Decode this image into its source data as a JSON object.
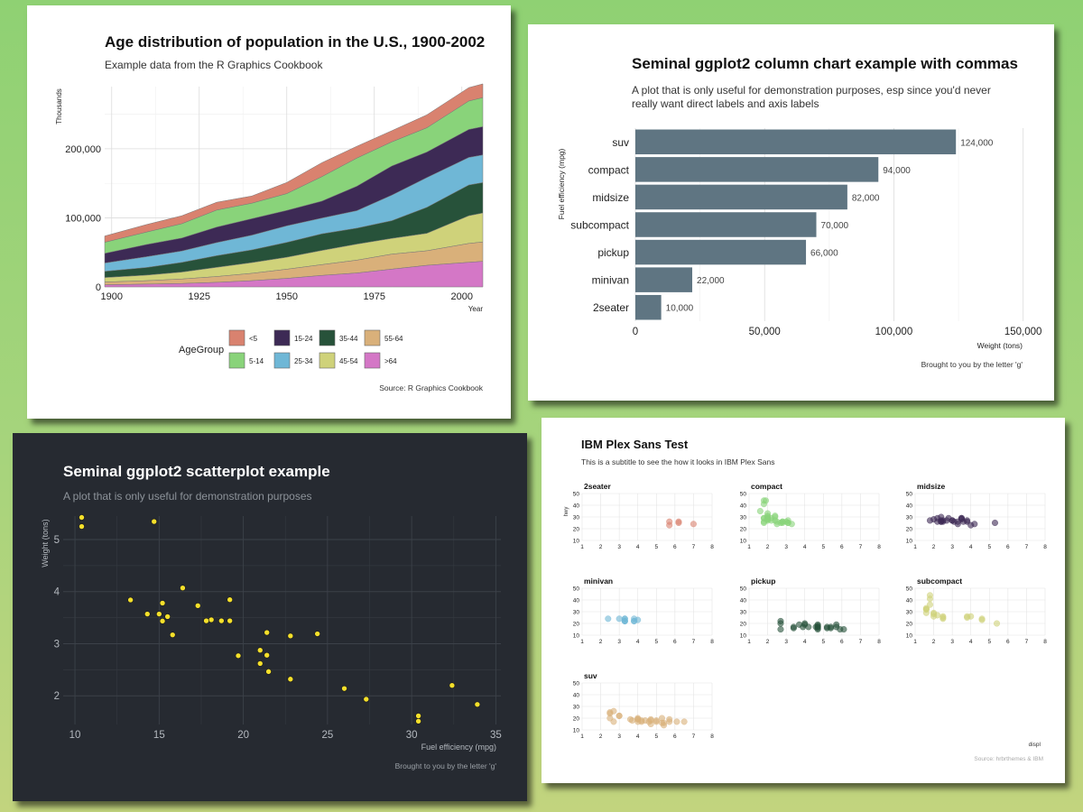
{
  "chart_data": [
    {
      "type": "area",
      "title": "Age distribution of population in the U.S., 1900-2002",
      "subtitle": "Example data from the R Graphics Cookbook",
      "xlabel": "Year",
      "ylabel": "Thousands",
      "caption": "Source: R Graphics Cookbook",
      "legend_title": "AgeGroup",
      "xlim": [
        1898,
        2006
      ],
      "ylim": [
        0,
        290000
      ],
      "x_ticks": [
        1900,
        1925,
        1950,
        1975,
        2000
      ],
      "y_ticks": [
        0,
        100000,
        200000
      ],
      "y_tick_labels": [
        "0",
        "100,000",
        "200,000"
      ],
      "x": [
        1898,
        1910,
        1920,
        1930,
        1940,
        1950,
        1960,
        1970,
        1980,
        1990,
        2002,
        2006
      ],
      "series": [
        {
          "name": "<5",
          "color": "#d9826f",
          "values": [
            9200,
            11000,
            11600,
            11400,
            10500,
            16200,
            20300,
            17200,
            16300,
            18800,
            19500,
            20000
          ]
        },
        {
          "name": "5-14",
          "color": "#89d37a",
          "values": [
            16000,
            18000,
            20700,
            24600,
            22400,
            24300,
            35400,
            40700,
            34900,
            35100,
            41200,
            42000
          ]
        },
        {
          "name": "15-24",
          "color": "#3d2a55",
          "values": [
            14000,
            17700,
            18800,
            22500,
            23900,
            22300,
            24500,
            35400,
            42200,
            37000,
            40500,
            41000
          ]
        },
        {
          "name": "25-34",
          "color": "#6fb7d6",
          "values": [
            12000,
            15600,
            16500,
            18900,
            21300,
            24000,
            22800,
            25300,
            37000,
            43100,
            39900,
            40000
          ]
        },
        {
          "name": "35-44",
          "color": "#27523a",
          "values": [
            9000,
            11100,
            14000,
            16900,
            18400,
            21500,
            24100,
            23100,
            25600,
            37600,
            44500,
            44000
          ]
        },
        {
          "name": "45-54",
          "color": "#cfd27a",
          "values": [
            6500,
            8000,
            10000,
            13300,
            15500,
            17300,
            20500,
            23200,
            22800,
            25200,
            40100,
            42000
          ]
        },
        {
          "name": "55-64",
          "color": "#d9b07a",
          "values": [
            4000,
            5000,
            6500,
            8400,
            10600,
            13300,
            15600,
            18600,
            21700,
            21100,
            27300,
            28000
          ]
        },
        {
          "name": ">64",
          "color": "#d477c6",
          "values": [
            3000,
            4000,
            4900,
            6600,
            9000,
            12300,
            16600,
            20100,
            25700,
            31200,
            35600,
            37000
          ]
        }
      ]
    },
    {
      "type": "bar",
      "orientation": "horizontal",
      "title": "Seminal ggplot2 column chart example with commas",
      "subtitle_lines": [
        "A plot that is only useful for demonstration purposes, esp since you'd never",
        "really want direct labels and axis labels"
      ],
      "xlabel": "Weight (tons)",
      "ylabel": "Fuel efficiency (mpg)",
      "caption": "Brought to you by the letter 'g'",
      "xlim": [
        0,
        155000
      ],
      "x_ticks": [
        0,
        50000,
        100000,
        150000
      ],
      "x_tick_labels": [
        "0",
        "50,000",
        "100,000",
        "150,000"
      ],
      "categories": [
        "suv",
        "compact",
        "midsize",
        "subcompact",
        "pickup",
        "minivan",
        "2seater"
      ],
      "values": [
        124000,
        94000,
        82000,
        70000,
        66000,
        22000,
        10000
      ],
      "value_labels": [
        "124,000",
        "94,000",
        "82,000",
        "70,000",
        "66,000",
        "22,000",
        "10,000"
      ],
      "color": "#5f7582"
    },
    {
      "type": "scatter",
      "title": "Seminal ggplot2 scatterplot example",
      "subtitle": "A plot that is only useful for demonstration purposes",
      "xlabel": "Fuel efficiency (mpg)",
      "ylabel": "Weight (tons)",
      "caption": "Brought to you by the letter 'g'",
      "xlim": [
        9.3,
        35.3
      ],
      "ylim": [
        1.45,
        5.45
      ],
      "x_ticks": [
        10,
        15,
        20,
        25,
        30,
        35
      ],
      "y_ticks": [
        2,
        3,
        4,
        5
      ],
      "color": "#f5e02b",
      "points": [
        [
          21.0,
          2.62
        ],
        [
          21.0,
          2.875
        ],
        [
          22.8,
          2.32
        ],
        [
          21.4,
          3.215
        ],
        [
          18.7,
          3.44
        ],
        [
          18.1,
          3.46
        ],
        [
          14.3,
          3.57
        ],
        [
          24.4,
          3.19
        ],
        [
          22.8,
          3.15
        ],
        [
          19.2,
          3.44
        ],
        [
          17.8,
          3.44
        ],
        [
          16.4,
          4.07
        ],
        [
          17.3,
          3.73
        ],
        [
          15.2,
          3.78
        ],
        [
          10.4,
          5.25
        ],
        [
          10.4,
          5.424
        ],
        [
          14.7,
          5.345
        ],
        [
          32.4,
          2.2
        ],
        [
          30.4,
          1.615
        ],
        [
          33.9,
          1.835
        ],
        [
          21.5,
          2.465
        ],
        [
          15.5,
          3.52
        ],
        [
          15.2,
          3.435
        ],
        [
          13.3,
          3.84
        ],
        [
          19.2,
          3.845
        ],
        [
          27.3,
          1.935
        ],
        [
          26.0,
          2.14
        ],
        [
          30.4,
          1.513
        ],
        [
          15.8,
          3.17
        ],
        [
          19.7,
          2.77
        ],
        [
          15.0,
          3.57
        ],
        [
          21.4,
          2.78
        ]
      ]
    },
    {
      "type": "scatter",
      "facets": true,
      "title": "IBM Plex Sans Test",
      "subtitle": "This is a subtitle to see the how it looks in IBM Plex Sans",
      "xlabel": "displ",
      "ylabel": "hwy",
      "caption": "Source: hrbrthemes & IBM",
      "xlim": [
        1,
        8
      ],
      "ylim": [
        10,
        50
      ],
      "x_ticks": [
        1,
        2,
        3,
        4,
        5,
        6,
        7,
        8
      ],
      "y_ticks": [
        10,
        20,
        30,
        40,
        50
      ],
      "panels": [
        {
          "name": "2seater",
          "color": "#d9826f",
          "points": [
            [
              5.7,
              26
            ],
            [
              5.7,
              23
            ],
            [
              6.2,
              26
            ],
            [
              6.2,
              25
            ],
            [
              7.0,
              24
            ]
          ]
        },
        {
          "name": "compact",
          "color": "#89d37a",
          "points": [
            [
              1.8,
              29
            ],
            [
              1.8,
              29
            ],
            [
              2.0,
              31
            ],
            [
              2.0,
              30
            ],
            [
              2.8,
              26
            ],
            [
              2.8,
              26
            ],
            [
              3.1,
              27
            ],
            [
              1.8,
              26
            ],
            [
              1.8,
              25
            ],
            [
              2.0,
              28
            ],
            [
              2.0,
              27
            ],
            [
              2.8,
              25
            ],
            [
              3.1,
              25
            ],
            [
              3.1,
              25
            ],
            [
              2.2,
              27
            ],
            [
              2.2,
              29
            ],
            [
              2.4,
              27
            ],
            [
              2.4,
              31
            ],
            [
              3.0,
              26
            ],
            [
              1.8,
              44
            ],
            [
              1.8,
              41
            ],
            [
              1.9,
              44
            ],
            [
              2.0,
              29
            ],
            [
              2.0,
              28
            ],
            [
              2.5,
              24
            ],
            [
              2.5,
              26
            ],
            [
              2.7,
              25
            ],
            [
              3.3,
              24
            ],
            [
              2.4,
              30
            ],
            [
              2.0,
              33
            ],
            [
              1.6,
              35
            ]
          ]
        },
        {
          "name": "midsize",
          "color": "#3d2a55",
          "points": [
            [
              2.4,
              27
            ],
            [
              2.4,
              30
            ],
            [
              3.1,
              26
            ],
            [
              3.5,
              29
            ],
            [
              3.6,
              26
            ],
            [
              2.4,
              26
            ],
            [
              3.0,
              27
            ],
            [
              3.3,
              26
            ],
            [
              3.3,
              24
            ],
            [
              3.8,
              26
            ],
            [
              3.8,
              27
            ],
            [
              4.0,
              23
            ],
            [
              5.3,
              25
            ],
            [
              2.5,
              26
            ],
            [
              2.5,
              27
            ],
            [
              2.8,
              29
            ],
            [
              2.0,
              28
            ],
            [
              1.8,
              27
            ],
            [
              2.2,
              29
            ],
            [
              2.7,
              27
            ],
            [
              3.5,
              28
            ],
            [
              3.5,
              29
            ],
            [
              2.2,
              26
            ],
            [
              2.4,
              26
            ],
            [
              3.0,
              27
            ],
            [
              4.2,
              24
            ]
          ]
        },
        {
          "name": "minivan",
          "color": "#6fb7d6",
          "points": [
            [
              2.4,
              24
            ],
            [
              3.0,
              24
            ],
            [
              3.3,
              22
            ],
            [
              3.3,
              22
            ],
            [
              3.3,
              24
            ],
            [
              3.3,
              24
            ],
            [
              3.3,
              22
            ],
            [
              3.8,
              22
            ],
            [
              3.8,
              24
            ],
            [
              3.8,
              22
            ],
            [
              4.0,
              23
            ]
          ]
        },
        {
          "name": "pickup",
          "color": "#27523a",
          "points": [
            [
              2.7,
              20
            ],
            [
              2.7,
              15
            ],
            [
              3.4,
              17
            ],
            [
              3.7,
              19
            ],
            [
              3.9,
              17
            ],
            [
              4.7,
              17
            ],
            [
              4.7,
              18
            ],
            [
              5.2,
              17
            ],
            [
              5.7,
              19
            ],
            [
              5.9,
              15
            ],
            [
              4.7,
              17
            ],
            [
              4.7,
              19
            ],
            [
              5.2,
              16
            ],
            [
              5.7,
              17
            ],
            [
              6.1,
              15
            ],
            [
              4.0,
              19
            ],
            [
              4.2,
              17
            ],
            [
              4.6,
              17
            ],
            [
              5.4,
              17
            ],
            [
              5.4,
              16
            ],
            [
              2.7,
              22
            ],
            [
              3.4,
              16
            ],
            [
              4.0,
              20
            ],
            [
              4.7,
              15
            ],
            [
              4.7,
              16
            ]
          ]
        },
        {
          "name": "subcompact",
          "color": "#cfd27a",
          "points": [
            [
              3.8,
              26
            ],
            [
              3.8,
              25
            ],
            [
              4.0,
              26
            ],
            [
              4.6,
              23
            ],
            [
              4.6,
              24
            ],
            [
              5.4,
              20
            ],
            [
              1.6,
              33
            ],
            [
              1.6,
              32
            ],
            [
              1.6,
              32
            ],
            [
              1.6,
              29
            ],
            [
              1.8,
              36
            ],
            [
              1.8,
              44
            ],
            [
              1.8,
              41
            ],
            [
              2.0,
              29
            ],
            [
              2.0,
              26
            ],
            [
              2.5,
              26
            ],
            [
              2.5,
              24
            ],
            [
              2.5,
              25
            ],
            [
              2.2,
              27
            ],
            [
              2.0,
              28
            ]
          ]
        },
        {
          "name": "suv",
          "color": "#d9b07a",
          "points": [
            [
              2.5,
              20
            ],
            [
              2.5,
              24
            ],
            [
              2.7,
              17
            ],
            [
              3.0,
              22
            ],
            [
              4.0,
              17
            ],
            [
              4.0,
              19
            ],
            [
              4.2,
              17
            ],
            [
              4.6,
              17
            ],
            [
              4.7,
              18
            ],
            [
              5.0,
              17
            ],
            [
              5.3,
              16
            ],
            [
              5.3,
              20
            ],
            [
              5.7,
              17
            ],
            [
              6.1,
              17
            ],
            [
              6.5,
              17
            ],
            [
              4.7,
              15
            ],
            [
              5.4,
              16
            ],
            [
              4.0,
              20
            ],
            [
              4.4,
              18
            ],
            [
              4.7,
              19
            ],
            [
              3.7,
              18
            ],
            [
              3.0,
              22
            ],
            [
              2.7,
              26
            ],
            [
              4.0,
              19
            ],
            [
              5.4,
              14
            ],
            [
              3.6,
              19
            ],
            [
              4.2,
              18
            ],
            [
              5.0,
              18
            ],
            [
              5.7,
              19
            ],
            [
              2.5,
              25
            ]
          ]
        }
      ]
    }
  ]
}
